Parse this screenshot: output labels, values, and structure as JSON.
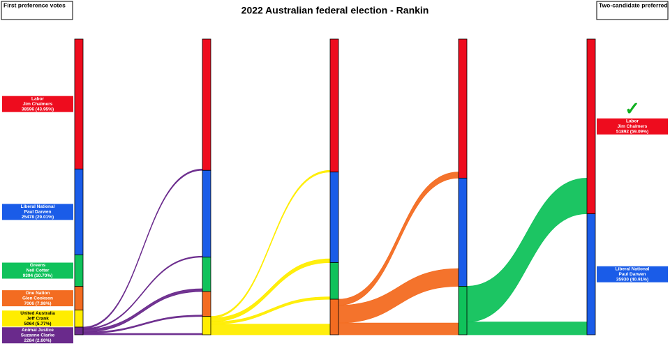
{
  "chart_data": {
    "type": "sankey",
    "title": "2022 Australian federal election - Rankin",
    "left_label": "First preference votes",
    "right_label": "Two-candidate preferred",
    "candidates": [
      {
        "party": "Labor",
        "name": "Jim Chalmers",
        "value": 38596,
        "value_label": "38596 (43.95%)",
        "color": "#ee0c1e"
      },
      {
        "party": "Liberal National",
        "name": "Paul Darwen",
        "value": 25478,
        "value_label": "25478 (29.01%)",
        "color": "#1a5ce8"
      },
      {
        "party": "Greens",
        "name": "Neil Cotter",
        "value": 9394,
        "value_label": "9394 (10.70%)",
        "color": "#10c25b"
      },
      {
        "party": "One Nation",
        "name": "Glen Cookson",
        "value": 7006,
        "value_label": "7006 (7.98%)",
        "color": "#f36c21"
      },
      {
        "party": "United Australia",
        "name": "Jeff Crank",
        "value": 5064,
        "value_label": "5064 (5.77%)",
        "color": "#ffed00"
      },
      {
        "party": "Animal Justice",
        "name": "Suzanne Clarke",
        "value": 2284,
        "value_label": "2284 (2.60%)",
        "color": "#6a2a8c"
      }
    ],
    "transfers": [
      [
        400,
        300,
        800,
        400,
        384
      ],
      [
        500,
        1100,
        700,
        3148
      ],
      [
        1800,
        5254,
        3500
      ],
      [
        10596,
        3798
      ]
    ],
    "final": [
      {
        "party": "Labor",
        "name": "Jim Chalmers",
        "value": 51892,
        "value_label": "51892 (59.09%)",
        "color": "#ee0c1e"
      },
      {
        "party": "Liberal National",
        "name": "Paul Darwen",
        "value": 35930,
        "value_label": "35930 (40.91%)",
        "color": "#1a5ce8"
      }
    ]
  }
}
